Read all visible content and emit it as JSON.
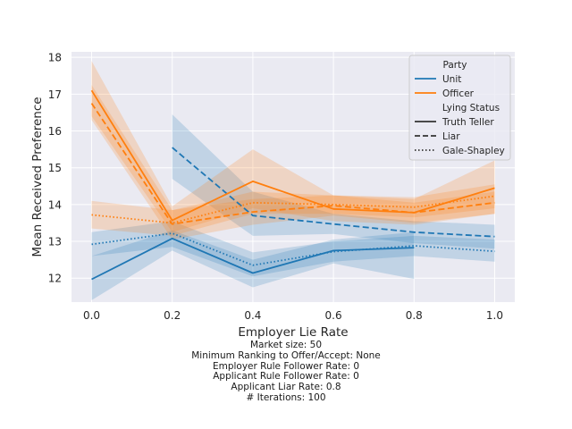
{
  "chart_data": {
    "type": "line",
    "title": "",
    "xlabel": "Employer Lie Rate",
    "ylabel": "Mean Received Preference",
    "xlim": [
      -0.05,
      1.05
    ],
    "ylim": [
      11.35,
      18.15
    ],
    "xticks": [
      0.0,
      0.2,
      0.4,
      0.6,
      0.8,
      1.0
    ],
    "xtick_labels": [
      "0.0",
      "0.2",
      "0.4",
      "0.6",
      "0.8",
      "1.0"
    ],
    "yticks": [
      12,
      13,
      14,
      15,
      16,
      17,
      18
    ],
    "ytick_labels": [
      "12",
      "13",
      "14",
      "15",
      "16",
      "17",
      "18"
    ],
    "grid": true,
    "legend_placement": "top-right",
    "legend": {
      "hue_title": "Party",
      "hue_entries": [
        {
          "label": "Unit",
          "color": "#1f77b4"
        },
        {
          "label": "Officer",
          "color": "#ff7f0e"
        }
      ],
      "style_title": "Lying Status",
      "style_entries": [
        {
          "label": "Truth Teller",
          "dash": "solid"
        },
        {
          "label": "Liar",
          "dash": "dashed"
        },
        {
          "label": "Gale-Shapley",
          "dash": "dotted"
        }
      ]
    },
    "series": [
      {
        "party": "Unit",
        "status": "Truth Teller",
        "color": "#1f77b4",
        "dash": "solid",
        "x": [
          0.0,
          0.2,
          0.4,
          0.6,
          0.8
        ],
        "y": [
          11.97,
          13.08,
          12.14,
          12.75,
          12.83
        ],
        "ci_low": [
          11.4,
          12.75,
          11.75,
          12.4,
          11.98
        ],
        "ci_high": [
          12.6,
          13.3,
          12.5,
          13.05,
          13.25
        ]
      },
      {
        "party": "Unit",
        "status": "Liar",
        "color": "#1f77b4",
        "dash": "dashed",
        "x": [
          0.2,
          0.4,
          0.6,
          0.8,
          1.0
        ],
        "y": [
          15.55,
          13.7,
          13.47,
          13.25,
          13.13
        ],
        "ci_low": [
          14.7,
          13.15,
          13.2,
          12.95,
          12.8
        ],
        "ci_high": [
          16.45,
          14.35,
          13.75,
          13.55,
          13.45
        ]
      },
      {
        "party": "Unit",
        "status": "Gale-Shapley",
        "color": "#1f77b4",
        "dash": "dotted",
        "x": [
          0.0,
          0.2,
          0.4,
          0.6,
          0.8,
          1.0
        ],
        "y": [
          12.92,
          13.22,
          12.35,
          12.72,
          12.88,
          12.73
        ],
        "ci_low": [
          12.6,
          12.85,
          12.05,
          12.45,
          12.6,
          12.45
        ],
        "ci_high": [
          13.25,
          13.55,
          12.7,
          13.0,
          13.15,
          13.05
        ]
      },
      {
        "party": "Officer",
        "status": "Truth Teller",
        "color": "#ff7f0e",
        "dash": "solid",
        "x": [
          0.0,
          0.2,
          0.4,
          0.6,
          0.8,
          1.0
        ],
        "y": [
          17.1,
          13.57,
          14.63,
          13.88,
          13.78,
          14.45
        ],
        "ci_low": [
          16.4,
          13.25,
          13.9,
          13.55,
          13.45,
          13.75
        ],
        "ci_high": [
          17.9,
          13.95,
          15.5,
          14.25,
          14.15,
          15.2
        ]
      },
      {
        "party": "Officer",
        "status": "Liar",
        "color": "#ff7f0e",
        "dash": "dashed",
        "x": [
          0.0,
          0.2,
          0.4,
          0.6,
          0.8,
          1.0
        ],
        "y": [
          16.75,
          13.47,
          13.8,
          13.97,
          13.78,
          14.05
        ],
        "ci_low": [
          16.3,
          13.05,
          13.45,
          13.7,
          13.5,
          13.75
        ],
        "ci_high": [
          17.25,
          13.85,
          14.15,
          14.25,
          14.05,
          14.35
        ]
      },
      {
        "party": "Officer",
        "status": "Gale-Shapley",
        "color": "#ff7f0e",
        "dash": "dotted",
        "x": [
          0.0,
          0.2,
          0.4,
          0.6,
          0.8,
          1.0
        ],
        "y": [
          13.72,
          13.5,
          14.05,
          14.0,
          13.93,
          14.23
        ],
        "ci_low": [
          13.35,
          13.15,
          13.75,
          13.75,
          13.65,
          13.9
        ],
        "ci_high": [
          14.1,
          13.85,
          14.35,
          14.25,
          14.2,
          14.55
        ]
      }
    ]
  },
  "caption": [
    "Market size: 50",
    "Minimum Ranking to Offer/Accept: None",
    "Employer Rule Follower Rate: 0",
    "Applicant Rule Follower Rate: 0",
    "Applicant Liar Rate: 0.8",
    "# Iterations: 100"
  ]
}
